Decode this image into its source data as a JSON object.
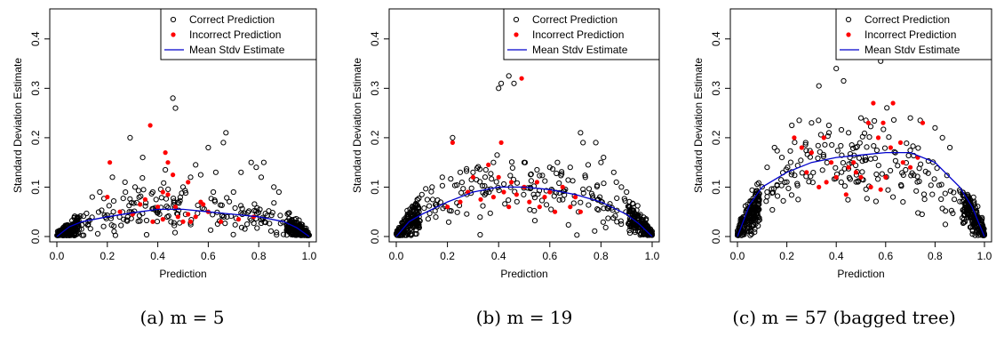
{
  "panels": [
    {
      "caption": "(a) m = 5",
      "chart_data": {
        "type": "scatter",
        "xlabel": "Prediction",
        "ylabel": "Standard Deviation Estimate",
        "xlim": [
          0.0,
          1.0
        ],
        "ylim": [
          0.0,
          0.45
        ],
        "xticks": [
          "0.0",
          "0.2",
          "0.4",
          "0.6",
          "0.8",
          "1.0"
        ],
        "yticks": [
          "0.0",
          "0.1",
          "0.2",
          "0.3",
          "0.4"
        ],
        "legend": [
          "Correct Prediction",
          "Incorrect Prediction",
          "Mean Stdv Estimate"
        ],
        "legend_position": "top-right",
        "mean_curve": {
          "x": [
            0.0,
            0.05,
            0.1,
            0.2,
            0.3,
            0.4,
            0.5,
            0.6,
            0.7,
            0.8,
            0.9,
            0.95,
            1.0
          ],
          "y": [
            0.0,
            0.02,
            0.03,
            0.04,
            0.048,
            0.055,
            0.055,
            0.05,
            0.045,
            0.04,
            0.03,
            0.018,
            0.0
          ]
        },
        "incorrect": [
          [
            0.21,
            0.15
          ],
          [
            0.37,
            0.225
          ],
          [
            0.43,
            0.17
          ],
          [
            0.44,
            0.15
          ],
          [
            0.46,
            0.125
          ],
          [
            0.52,
            0.11
          ],
          [
            0.2,
            0.08
          ],
          [
            0.33,
            0.065
          ],
          [
            0.4,
            0.06
          ],
          [
            0.42,
            0.09
          ],
          [
            0.44,
            0.085
          ],
          [
            0.48,
            0.04
          ],
          [
            0.5,
            0.03
          ],
          [
            0.52,
            0.045
          ],
          [
            0.55,
            0.04
          ],
          [
            0.57,
            0.07
          ],
          [
            0.58,
            0.065
          ],
          [
            0.6,
            0.05
          ],
          [
            0.38,
            0.03
          ],
          [
            0.3,
            0.045
          ],
          [
            0.25,
            0.05
          ],
          [
            0.65,
            0.03
          ],
          [
            0.35,
            0.075
          ],
          [
            0.47,
            0.06
          ],
          [
            0.42,
            0.035
          ],
          [
            0.53,
            0.03
          ],
          [
            0.78,
            0.04
          ],
          [
            0.72,
            0.035
          ]
        ],
        "correct_outliers": [
          [
            0.46,
            0.28
          ],
          [
            0.47,
            0.26
          ],
          [
            0.29,
            0.2
          ],
          [
            0.67,
            0.21
          ],
          [
            0.66,
            0.19
          ],
          [
            0.6,
            0.18
          ],
          [
            0.34,
            0.16
          ],
          [
            0.43,
            0.135
          ],
          [
            0.55,
            0.145
          ],
          [
            0.77,
            0.15
          ],
          [
            0.82,
            0.15
          ],
          [
            0.79,
            0.14
          ],
          [
            0.81,
            0.12
          ],
          [
            0.73,
            0.13
          ],
          [
            0.63,
            0.13
          ],
          [
            0.57,
            0.125
          ],
          [
            0.53,
            0.12
          ],
          [
            0.22,
            0.12
          ],
          [
            0.27,
            0.11
          ],
          [
            0.31,
            0.1
          ],
          [
            0.5,
            0.1
          ],
          [
            0.86,
            0.1
          ],
          [
            0.88,
            0.09
          ],
          [
            0.17,
            0.09
          ],
          [
            0.14,
            0.08
          ],
          [
            0.38,
            0.09
          ],
          [
            0.62,
            0.09
          ],
          [
            0.7,
            0.09
          ]
        ],
        "model": {
          "peak": 0.055,
          "spread": 0.022,
          "n": 520
        }
      }
    },
    {
      "caption": "(b) m = 19",
      "chart_data": {
        "type": "scatter",
        "xlabel": "Prediction",
        "ylabel": "Standard Deviation Estimate",
        "xlim": [
          0.0,
          1.0
        ],
        "ylim": [
          0.0,
          0.45
        ],
        "xticks": [
          "0.0",
          "0.2",
          "0.4",
          "0.6",
          "0.8",
          "1.0"
        ],
        "yticks": [
          "0.0",
          "0.1",
          "0.2",
          "0.3",
          "0.4"
        ],
        "legend": [
          "Correct Prediction",
          "Incorrect Prediction",
          "Mean Stdv Estimate"
        ],
        "legend_position": "top-right",
        "mean_curve": {
          "x": [
            0.0,
            0.05,
            0.1,
            0.2,
            0.3,
            0.4,
            0.5,
            0.6,
            0.7,
            0.8,
            0.9,
            0.95,
            1.0
          ],
          "y": [
            0.0,
            0.03,
            0.045,
            0.07,
            0.09,
            0.1,
            0.1,
            0.095,
            0.085,
            0.07,
            0.045,
            0.025,
            0.0
          ]
        },
        "incorrect": [
          [
            0.49,
            0.32
          ],
          [
            0.41,
            0.19
          ],
          [
            0.22,
            0.19
          ],
          [
            0.36,
            0.145
          ],
          [
            0.3,
            0.12
          ],
          [
            0.4,
            0.12
          ],
          [
            0.45,
            0.11
          ],
          [
            0.5,
            0.1
          ],
          [
            0.55,
            0.11
          ],
          [
            0.6,
            0.09
          ],
          [
            0.65,
            0.1
          ],
          [
            0.7,
            0.08
          ],
          [
            0.25,
            0.07
          ],
          [
            0.33,
            0.075
          ],
          [
            0.38,
            0.08
          ],
          [
            0.42,
            0.09
          ],
          [
            0.47,
            0.085
          ],
          [
            0.52,
            0.07
          ],
          [
            0.56,
            0.06
          ],
          [
            0.62,
            0.05
          ],
          [
            0.68,
            0.06
          ],
          [
            0.72,
            0.05
          ],
          [
            0.2,
            0.06
          ],
          [
            0.28,
            0.09
          ],
          [
            0.44,
            0.06
          ],
          [
            0.58,
            0.08
          ]
        ],
        "correct_outliers": [
          [
            0.44,
            0.325
          ],
          [
            0.41,
            0.31
          ],
          [
            0.4,
            0.3
          ],
          [
            0.46,
            0.31
          ],
          [
            0.22,
            0.2
          ],
          [
            0.72,
            0.21
          ],
          [
            0.73,
            0.19
          ],
          [
            0.78,
            0.19
          ],
          [
            0.81,
            0.16
          ],
          [
            0.8,
            0.15
          ],
          [
            0.75,
            0.145
          ],
          [
            0.68,
            0.14
          ],
          [
            0.6,
            0.14
          ],
          [
            0.55,
            0.135
          ],
          [
            0.35,
            0.135
          ],
          [
            0.3,
            0.13
          ],
          [
            0.25,
            0.13
          ],
          [
            0.18,
            0.12
          ],
          [
            0.85,
            0.13
          ],
          [
            0.86,
            0.11
          ],
          [
            0.88,
            0.1
          ],
          [
            0.9,
            0.09
          ],
          [
            0.14,
            0.1
          ],
          [
            0.1,
            0.085
          ],
          [
            0.5,
            0.15
          ],
          [
            0.63,
            0.15
          ],
          [
            0.38,
            0.15
          ]
        ],
        "model": {
          "peak": 0.1,
          "spread": 0.032,
          "n": 520
        }
      }
    },
    {
      "caption": "(c) m = 57 (bagged tree)",
      "chart_data": {
        "type": "scatter",
        "xlabel": "Prediction",
        "ylabel": "Standard Deviation Estimate",
        "xlim": [
          0.0,
          1.0
        ],
        "ylim": [
          0.0,
          0.45
        ],
        "xticks": [
          "0.0",
          "0.2",
          "0.4",
          "0.6",
          "0.8",
          "1.0"
        ],
        "yticks": [
          "0.0",
          "0.1",
          "0.2",
          "0.3",
          "0.4"
        ],
        "legend": [
          "Correct Prediction",
          "Incorrect Prediction",
          "Mean Stdv Estimate"
        ],
        "legend_position": "top-right",
        "mean_curve": {
          "x": [
            0.0,
            0.05,
            0.1,
            0.2,
            0.3,
            0.4,
            0.5,
            0.6,
            0.7,
            0.8,
            0.9,
            0.95,
            1.0
          ],
          "y": [
            0.0,
            0.065,
            0.1,
            0.13,
            0.15,
            0.16,
            0.165,
            0.17,
            0.17,
            0.15,
            0.1,
            0.06,
            0.0
          ]
        },
        "incorrect": [
          [
            0.55,
            0.27
          ],
          [
            0.63,
            0.27
          ],
          [
            0.53,
            0.23
          ],
          [
            0.59,
            0.23
          ],
          [
            0.75,
            0.23
          ],
          [
            0.57,
            0.2
          ],
          [
            0.35,
            0.2
          ],
          [
            0.23,
            0.2
          ],
          [
            0.26,
            0.18
          ],
          [
            0.3,
            0.17
          ],
          [
            0.38,
            0.15
          ],
          [
            0.45,
            0.14
          ],
          [
            0.48,
            0.13
          ],
          [
            0.5,
            0.12
          ],
          [
            0.54,
            0.1
          ],
          [
            0.58,
            0.095
          ],
          [
            0.44,
            0.085
          ],
          [
            0.33,
            0.1
          ],
          [
            0.4,
            0.12
          ],
          [
            0.67,
            0.15
          ],
          [
            0.7,
            0.14
          ],
          [
            0.73,
            0.16
          ],
          [
            0.62,
            0.18
          ],
          [
            0.66,
            0.19
          ],
          [
            0.28,
            0.13
          ],
          [
            0.36,
            0.11
          ],
          [
            0.47,
            0.15
          ],
          [
            0.6,
            0.12
          ]
        ],
        "correct_outliers": [
          [
            0.4,
            0.34
          ],
          [
            0.43,
            0.315
          ],
          [
            0.58,
            0.355
          ],
          [
            0.33,
            0.305
          ],
          [
            0.25,
            0.235
          ],
          [
            0.22,
            0.225
          ],
          [
            0.52,
            0.235
          ],
          [
            0.7,
            0.24
          ],
          [
            0.74,
            0.235
          ],
          [
            0.8,
            0.22
          ],
          [
            0.45,
            0.21
          ],
          [
            0.48,
            0.18
          ],
          [
            0.67,
            0.07
          ],
          [
            0.63,
            0.08
          ],
          [
            0.42,
            0.11
          ],
          [
            0.5,
            0.24
          ],
          [
            0.3,
            0.23
          ],
          [
            0.37,
            0.225
          ],
          [
            0.83,
            0.2
          ],
          [
            0.86,
            0.18
          ],
          [
            0.15,
            0.18
          ],
          [
            0.18,
            0.16
          ],
          [
            0.12,
            0.14
          ]
        ],
        "model": {
          "peak": 0.16,
          "spread": 0.04,
          "n": 560
        }
      }
    }
  ],
  "colors": {
    "correct": "#000000",
    "incorrect": "#ff0000",
    "mean": "#0000cc",
    "axis": "#000000"
  }
}
